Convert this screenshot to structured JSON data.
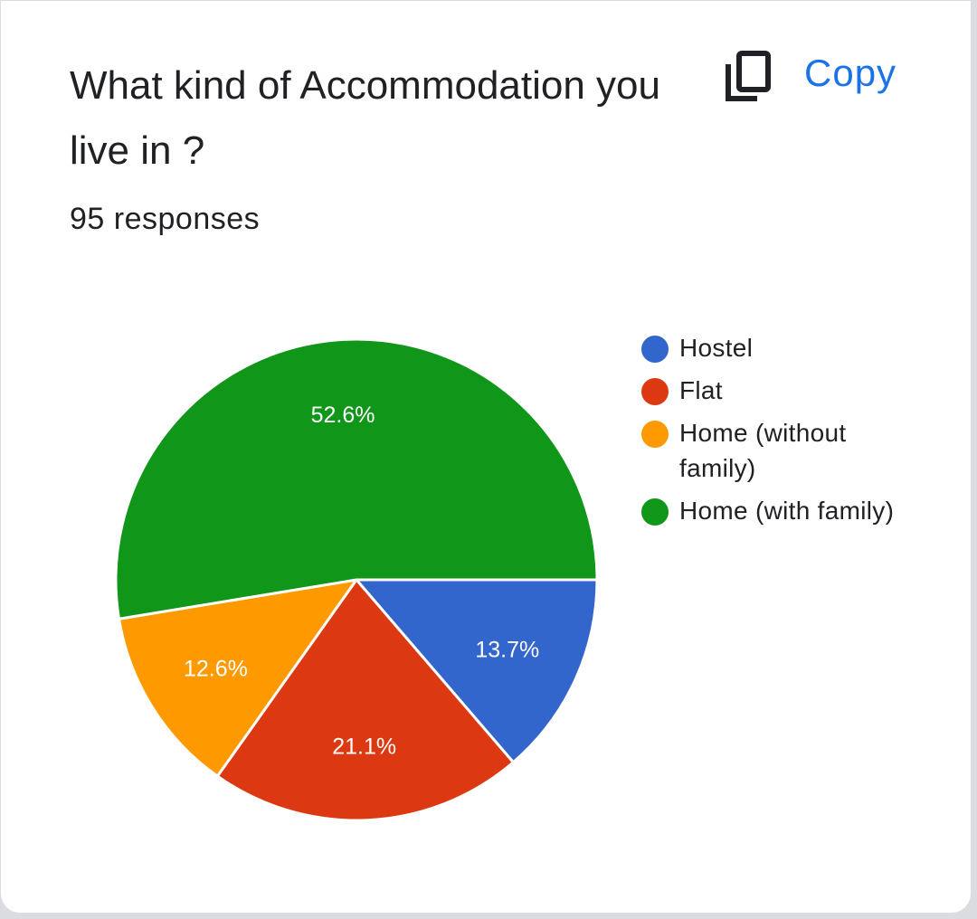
{
  "card": {
    "title": "What kind of Accommodation you live in ?",
    "responses": "95 responses",
    "copy_label": "Copy",
    "copy_icon": "copy-icon"
  },
  "chart_data": {
    "type": "pie",
    "categories": [
      "Hostel",
      "Flat",
      "Home (without family)",
      "Home (with family)"
    ],
    "values": [
      13.7,
      21.1,
      12.6,
      52.6
    ],
    "labels": [
      "13.7%",
      "21.1%",
      "12.6%",
      "52.6%"
    ],
    "colors": [
      "#3366cc",
      "#dc3912",
      "#ff9900",
      "#109618"
    ],
    "legend_position": "right"
  }
}
